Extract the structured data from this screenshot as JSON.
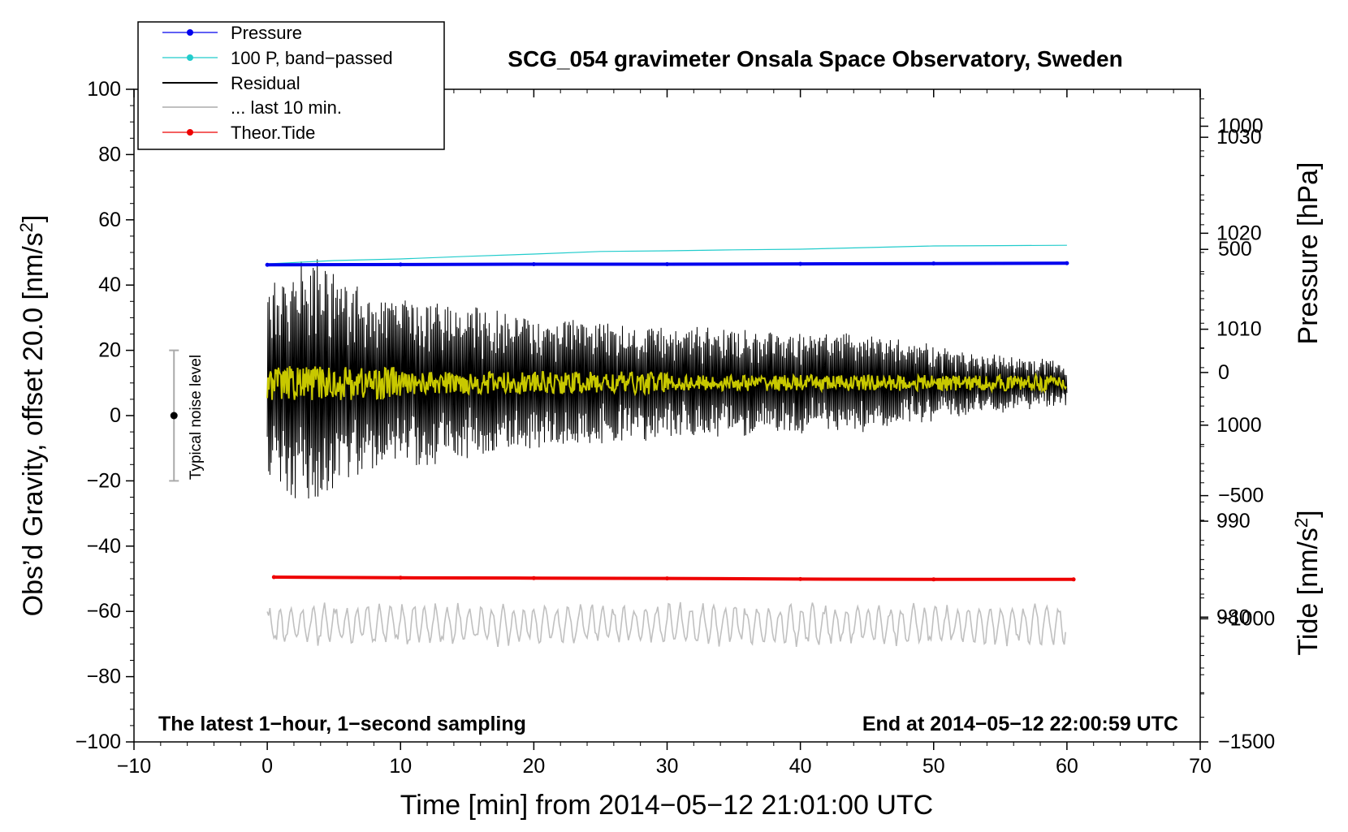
{
  "chart_data": {
    "type": "line",
    "title": "SCG_054 gravimeter Onsala Space Observatory, Sweden",
    "xlabel": "Time [min] from 2014−05−12 21:01:00 UTC",
    "ylabel_main": "Obs’d Gravity, offset 20.0 [nm/s",
    "ylabel_main_sup": "2",
    "ylabel_main_end": "]",
    "ylabel_pressure": "Pressure [hPa]",
    "ylabel_tide": "Tide [nm/s",
    "ylabel_tide_sup": "2",
    "ylabel_tide_end": "]",
    "xlim": [
      -10,
      70
    ],
    "ylim": [
      -100,
      100
    ],
    "x_ticks": [
      -10,
      0,
      10,
      20,
      30,
      40,
      50,
      60,
      70
    ],
    "x_tick_labels": [
      "−10",
      "0",
      "10",
      "20",
      "30",
      "40",
      "50",
      "60",
      "70"
    ],
    "y_ticks": [
      -100,
      -80,
      -60,
      -40,
      -20,
      0,
      20,
      40,
      60,
      80,
      100
    ],
    "y_tick_labels": [
      "−100",
      "−80",
      "−60",
      "−40",
      "−20",
      "0",
      "20",
      "40",
      "60",
      "80",
      "100"
    ],
    "pressure_axis": {
      "range": [
        967,
        1035
      ],
      "ticks": [
        980,
        990,
        1000,
        1010,
        1020,
        1030
      ],
      "tick_labels": [
        "980",
        "990",
        "1000",
        "1010",
        "1020",
        "1030"
      ]
    },
    "tide_axis": {
      "range": [
        -1500,
        1150
      ],
      "ticks": [
        -1500,
        -1000,
        -500,
        0,
        500,
        1000
      ],
      "tick_labels": [
        "−1500",
        "−1000",
        "−500",
        "0",
        "500",
        "1000"
      ]
    },
    "legend": [
      {
        "label": "Pressure",
        "color": "#0000ee",
        "marker": true
      },
      {
        "label": "100 P, band−passed",
        "color": "#22cccc",
        "marker": true
      },
      {
        "label": "Residual",
        "color": "#000000",
        "marker": false
      },
      {
        "label": "... last 10 min.",
        "color": "#c0c0c0",
        "marker": false
      },
      {
        "label": "Theor.Tide",
        "color": "#ee0000",
        "marker": true
      }
    ],
    "annotations": {
      "left": "The latest 1−hour, 1−second sampling",
      "right": "End at 2014−05−12 22:00:59 UTC",
      "noise": "Typical noise level"
    },
    "noise_bar": {
      "x": -7,
      "center": 0,
      "low": -20,
      "high": 20
    },
    "series": [
      {
        "name": "Pressure",
        "color": "#0000ee",
        "x": [
          0,
          10,
          20,
          30,
          40,
          50,
          60
        ],
        "values": [
          46.2,
          46.3,
          46.4,
          46.4,
          46.5,
          46.6,
          46.7
        ]
      },
      {
        "name": "100 P, band-passed",
        "color": "#22cccc",
        "x": [
          0,
          5,
          10,
          15,
          20,
          25,
          30,
          35,
          40,
          45,
          50,
          55,
          60
        ],
        "values": [
          46.5,
          47.5,
          48.0,
          48.8,
          49.5,
          50.3,
          50.5,
          50.8,
          51.0,
          51.5,
          52.0,
          52.1,
          52.2
        ]
      },
      {
        "name": "Theor.Tide",
        "color": "#ee0000",
        "x": [
          0.5,
          10,
          20,
          30,
          40,
          50,
          60.5
        ],
        "values": [
          -49.5,
          -49.7,
          -49.8,
          -49.9,
          -50.1,
          -50.2,
          -50.2
        ]
      },
      {
        "name": "Residual",
        "color": "#000000",
        "x_range": [
          0,
          60
        ],
        "center": 10,
        "envelope_x": [
          0,
          2,
          4,
          8,
          14,
          20,
          30,
          40,
          46,
          50,
          60
        ],
        "envelope_amp": [
          28,
          36,
          38,
          26,
          24,
          20,
          17,
          15,
          14,
          11,
          6
        ]
      },
      {
        "name": "Residual smoothed",
        "color": "#c8c800",
        "x_range": [
          0,
          60
        ],
        "center": 10,
        "amp": 3.5
      },
      {
        "name": "... last 10 min.",
        "color": "#c0c0c0",
        "x_range": [
          0,
          60
        ],
        "center": -64,
        "amp": 7
      }
    ]
  }
}
